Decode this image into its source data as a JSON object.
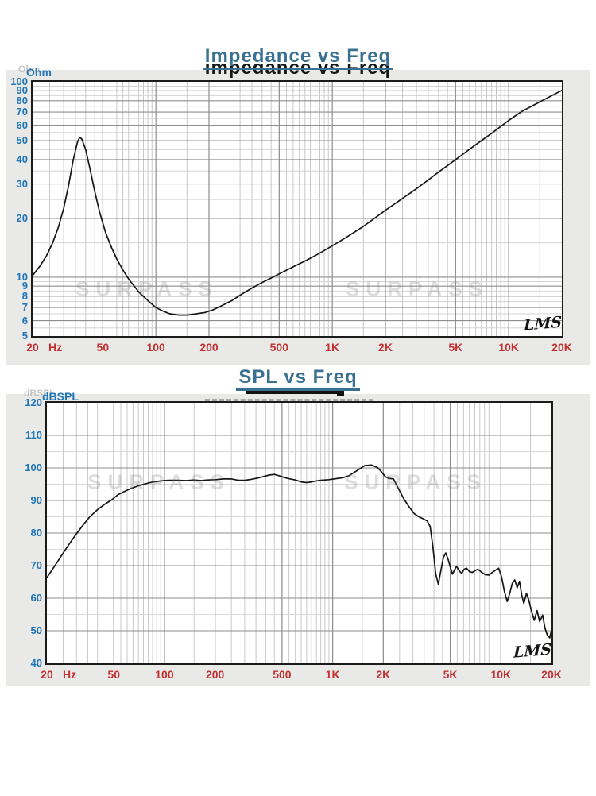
{
  "ui": {
    "colors": {
      "title_blue": "#3a7191",
      "axis_label_blue": "#2176b5",
      "freq_label_red": "#c23232",
      "curve_black": "#161616",
      "panel_gray": "#e9e9e8",
      "watermark_gray": "#7e7e7e"
    },
    "chart1": {
      "title": "Impedance vs Freq",
      "ghost_title": "Impedance vs Freq",
      "y_unit": "Ohm",
      "y_unit_ghost": "Ohm",
      "x_unit": "Hz",
      "signature": "LMS",
      "watermark": "SURPASS"
    },
    "chart2": {
      "title": "SPL vs Freq",
      "y_unit": "dBSPL",
      "y_unit_ghost": "dBSPL",
      "x_unit": "Hz",
      "signature": "LMS",
      "watermark": "SURPASS"
    }
  },
  "chart_data": [
    {
      "type": "line",
      "title": "Impedance vs Freq",
      "xlabel": "Frequency",
      "x_unit": "Hz",
      "ylabel": "Ohm",
      "x_scale": "log",
      "y_scale": "log",
      "xlim": [
        20,
        20000
      ],
      "ylim": [
        5,
        100
      ],
      "grid": true,
      "x_tick_values": [
        20,
        50,
        100,
        200,
        500,
        1000,
        2000,
        5000,
        10000,
        20000
      ],
      "x_tick_labels": [
        "20",
        "50",
        "100",
        "200",
        "500",
        "1K",
        "2K",
        "5K",
        "10K",
        "20K"
      ],
      "y_tick_values": [
        100,
        90,
        80,
        70,
        60,
        50,
        40,
        30,
        20,
        10,
        9,
        8,
        7,
        6,
        5
      ],
      "series": [
        {
          "name": "impedance",
          "x": [
            20,
            22,
            24,
            26,
            28,
            30,
            32,
            34,
            36,
            37,
            38,
            40,
            42,
            45,
            48,
            52,
            56,
            60,
            65,
            70,
            80,
            90,
            100,
            110,
            120,
            135,
            150,
            170,
            190,
            210,
            240,
            270,
            300,
            350,
            400,
            450,
            500,
            600,
            700,
            800,
            900,
            1000,
            1200,
            1500,
            2000,
            2500,
            3000,
            3500,
            4000,
            5000,
            6000,
            7000,
            8000,
            10000,
            12000,
            15000,
            18000,
            20000
          ],
          "y": [
            10.2,
            11.4,
            12.9,
            15.0,
            18.0,
            22.5,
            29.5,
            40.0,
            49.5,
            52.0,
            51.0,
            45.0,
            37.0,
            27.5,
            21.5,
            16.8,
            14.2,
            12.4,
            10.9,
            9.8,
            8.4,
            7.6,
            7.0,
            6.7,
            6.5,
            6.4,
            6.4,
            6.5,
            6.6,
            6.8,
            7.2,
            7.6,
            8.1,
            8.8,
            9.4,
            9.9,
            10.4,
            11.3,
            12.1,
            12.9,
            13.7,
            14.5,
            16.0,
            18.2,
            22.0,
            25.3,
            28.4,
            31.5,
            34.5,
            40.0,
            45.2,
            50.0,
            54.5,
            63.5,
            71.0,
            79.0,
            86.0,
            90.5
          ]
        }
      ]
    },
    {
      "type": "line",
      "title": "SPL vs Freq",
      "xlabel": "Frequency",
      "x_unit": "Hz",
      "ylabel": "dBSPL",
      "x_scale": "log",
      "y_scale": "linear",
      "xlim": [
        20,
        20000
      ],
      "ylim": [
        40,
        120
      ],
      "grid": true,
      "x_tick_values": [
        20,
        50,
        100,
        200,
        500,
        1000,
        2000,
        5000,
        10000,
        20000
      ],
      "x_tick_labels": [
        "20",
        "50",
        "100",
        "200",
        "500",
        "1K",
        "2K",
        "5K",
        "10K",
        "20K"
      ],
      "y_tick_values": [
        120,
        110,
        100,
        90,
        80,
        70,
        60,
        50,
        40
      ],
      "series": [
        {
          "name": "spl",
          "x": [
            20,
            22,
            24,
            26,
            28,
            30,
            33,
            36,
            40,
            44,
            48,
            53,
            58,
            64,
            70,
            78,
            86,
            95,
            105,
            120,
            135,
            150,
            165,
            180,
            200,
            225,
            250,
            275,
            300,
            330,
            360,
            390,
            420,
            450,
            480,
            520,
            560,
            600,
            650,
            700,
            750,
            800,
            850,
            950,
            1050,
            1150,
            1250,
            1400,
            1550,
            1700,
            1850,
            1950,
            2050,
            2150,
            2300,
            2450,
            2650,
            2850,
            3050,
            3250,
            3450,
            3650,
            3800,
            3950,
            4100,
            4250,
            4400,
            4550,
            4700,
            4850,
            5000,
            5150,
            5300,
            5450,
            5650,
            5850,
            6050,
            6250,
            6500,
            6750,
            7000,
            7300,
            7700,
            8100,
            8500,
            8900,
            9300,
            9700,
            10100,
            10500,
            10900,
            11300,
            11700,
            12100,
            12500,
            12900,
            13300,
            13700,
            14200,
            14700,
            15200,
            15800,
            16400,
            17000,
            17700,
            18300,
            18900,
            19500,
            20000
          ],
          "y": [
            66.3,
            69.5,
            72.5,
            75.2,
            77.6,
            79.8,
            82.6,
            85.0,
            87.2,
            88.8,
            90.0,
            91.8,
            92.8,
            93.8,
            94.5,
            95.2,
            95.7,
            96.0,
            96.2,
            96.2,
            96.1,
            96.3,
            96.1,
            96.3,
            96.4,
            96.6,
            96.6,
            96.2,
            96.2,
            96.5,
            96.9,
            97.4,
            97.8,
            98.0,
            97.6,
            97.0,
            96.6,
            96.3,
            95.7,
            95.5,
            95.7,
            96.0,
            96.2,
            96.4,
            96.7,
            97.0,
            97.6,
            99.2,
            100.7,
            100.9,
            100.1,
            98.8,
            97.4,
            96.8,
            96.6,
            93.8,
            90.5,
            88.0,
            86.0,
            85.0,
            84.4,
            83.7,
            82.0,
            75.5,
            67.5,
            64.3,
            68.5,
            72.5,
            73.9,
            72.0,
            69.6,
            67.4,
            68.6,
            69.8,
            68.4,
            67.6,
            68.9,
            69.2,
            68.2,
            67.9,
            68.4,
            68.9,
            67.9,
            67.2,
            67.1,
            67.9,
            68.6,
            69.2,
            66.5,
            62.0,
            59.0,
            61.5,
            64.6,
            65.6,
            63.2,
            65.2,
            61.0,
            58.4,
            61.5,
            59.2,
            56.0,
            53.2,
            56.2,
            52.8,
            54.8,
            50.8,
            48.6,
            47.8,
            50.2
          ]
        }
      ]
    }
  ]
}
